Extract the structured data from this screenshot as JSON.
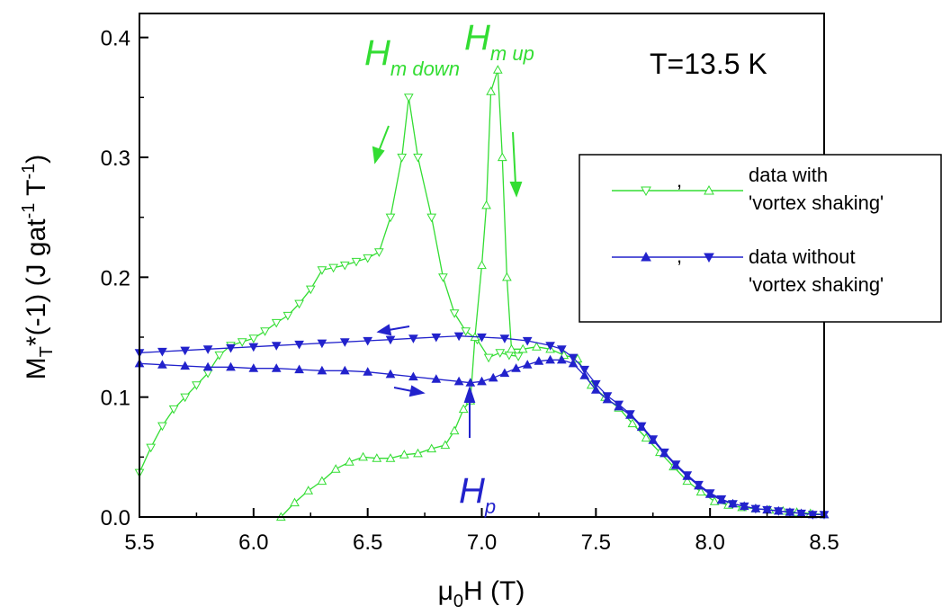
{
  "chart_data": {
    "type": "scatter",
    "xlim": [
      5.5,
      8.5
    ],
    "ylim": [
      0.0,
      0.42
    ],
    "x_ticks": [
      "5.5",
      "6.0",
      "6.5",
      "7.0",
      "7.5",
      "8.0",
      "8.5"
    ],
    "y_ticks": [
      "0.0",
      "0.1",
      "0.2",
      "0.3",
      "0.4"
    ],
    "x_tick_values": [
      5.5,
      6.0,
      6.5,
      7.0,
      7.5,
      8.0,
      8.5
    ],
    "y_tick_values": [
      0.0,
      0.1,
      0.2,
      0.3,
      0.4
    ],
    "xlabel": {
      "mu": "μ",
      "sub": "0",
      "rest": "H (T)"
    },
    "ylabel": {
      "m": "M",
      "sub": "T",
      "mid": "*(-1)  (J gat",
      "sup1": "-1",
      "t": " T",
      "sup2": "-1",
      "close": ")"
    },
    "grid": false,
    "legend_position": "right",
    "legend": [
      {
        "line1": "data with",
        "line2": "'vortex shaking'",
        "sep": ",",
        "color": "#33dd33"
      },
      {
        "line1": "data without",
        "line2": "'vortex shaking'",
        "sep": ",",
        "color": "#2222cc"
      }
    ],
    "annotations": {
      "temperature": "T=13.5 K",
      "h_m_down": {
        "main": "H",
        "sub": "m down"
      },
      "h_m_up": {
        "main": "H",
        "sub": "m up"
      },
      "h_p": {
        "main": "H",
        "sub": "p"
      }
    },
    "series": [
      {
        "color": "#33dd33",
        "marker": "triangle-down-open",
        "points": [
          [
            5.5,
            0.037
          ],
          [
            5.55,
            0.058
          ],
          [
            5.6,
            0.076
          ],
          [
            5.65,
            0.09
          ],
          [
            5.7,
            0.1
          ],
          [
            5.75,
            0.11
          ],
          [
            5.8,
            0.12
          ],
          [
            5.85,
            0.135
          ],
          [
            5.9,
            0.143
          ],
          [
            5.95,
            0.146
          ],
          [
            6.0,
            0.149
          ],
          [
            6.05,
            0.155
          ],
          [
            6.1,
            0.162
          ],
          [
            6.15,
            0.168
          ],
          [
            6.2,
            0.178
          ],
          [
            6.25,
            0.19
          ],
          [
            6.3,
            0.206
          ],
          [
            6.35,
            0.208
          ],
          [
            6.4,
            0.21
          ],
          [
            6.45,
            0.213
          ],
          [
            6.5,
            0.216
          ],
          [
            6.55,
            0.221
          ],
          [
            6.6,
            0.25
          ],
          [
            6.65,
            0.3
          ],
          [
            6.68,
            0.35
          ],
          [
            6.72,
            0.3
          ],
          [
            6.78,
            0.25
          ],
          [
            6.83,
            0.2
          ],
          [
            6.88,
            0.17
          ],
          [
            6.93,
            0.155
          ],
          [
            6.98,
            0.148
          ],
          [
            7.03,
            0.133
          ],
          [
            7.08,
            0.137
          ],
          [
            7.12,
            0.135
          ],
          [
            7.16,
            0.134
          ]
        ]
      },
      {
        "color": "#33dd33",
        "marker": "triangle-up-open",
        "points": [
          [
            6.12,
            0.0
          ],
          [
            6.18,
            0.012
          ],
          [
            6.24,
            0.022
          ],
          [
            6.3,
            0.03
          ],
          [
            6.36,
            0.04
          ],
          [
            6.42,
            0.046
          ],
          [
            6.48,
            0.05
          ],
          [
            6.54,
            0.049
          ],
          [
            6.6,
            0.049
          ],
          [
            6.66,
            0.052
          ],
          [
            6.72,
            0.053
          ],
          [
            6.78,
            0.057
          ],
          [
            6.84,
            0.06
          ],
          [
            6.88,
            0.072
          ],
          [
            6.92,
            0.09
          ],
          [
            6.95,
            0.097
          ],
          [
            6.97,
            0.15
          ],
          [
            7.0,
            0.21
          ],
          [
            7.02,
            0.26
          ],
          [
            7.04,
            0.355
          ],
          [
            7.07,
            0.373
          ],
          [
            7.09,
            0.3
          ],
          [
            7.11,
            0.2
          ],
          [
            7.13,
            0.14
          ],
          [
            7.18,
            0.14
          ],
          [
            7.24,
            0.142
          ],
          [
            7.3,
            0.14
          ],
          [
            7.36,
            0.135
          ],
          [
            7.42,
            0.132
          ],
          [
            7.48,
            0.11
          ],
          [
            7.54,
            0.1
          ],
          [
            7.6,
            0.091
          ],
          [
            7.66,
            0.078
          ],
          [
            7.72,
            0.066
          ],
          [
            7.78,
            0.054
          ],
          [
            7.84,
            0.042
          ],
          [
            7.9,
            0.03
          ],
          [
            7.96,
            0.021
          ],
          [
            8.02,
            0.013
          ],
          [
            8.08,
            0.01
          ],
          [
            8.14,
            0.008
          ],
          [
            8.2,
            0.007
          ],
          [
            8.26,
            0.006
          ],
          [
            8.32,
            0.005
          ],
          [
            8.38,
            0.004
          ],
          [
            8.44,
            0.003
          ],
          [
            8.5,
            0.002
          ]
        ]
      },
      {
        "color": "#2222cc",
        "marker": "triangle-up-filled",
        "points": [
          [
            5.5,
            0.128
          ],
          [
            5.6,
            0.127
          ],
          [
            5.7,
            0.126
          ],
          [
            5.8,
            0.125
          ],
          [
            5.9,
            0.125
          ],
          [
            6.0,
            0.124
          ],
          [
            6.1,
            0.124
          ],
          [
            6.2,
            0.123
          ],
          [
            6.3,
            0.122
          ],
          [
            6.4,
            0.122
          ],
          [
            6.5,
            0.121
          ],
          [
            6.6,
            0.119
          ],
          [
            6.7,
            0.117
          ],
          [
            6.8,
            0.115
          ],
          [
            6.9,
            0.113
          ],
          [
            6.95,
            0.112
          ],
          [
            7.0,
            0.113
          ],
          [
            7.05,
            0.116
          ],
          [
            7.1,
            0.12
          ],
          [
            7.15,
            0.124
          ],
          [
            7.2,
            0.127
          ],
          [
            7.25,
            0.13
          ],
          [
            7.3,
            0.131
          ],
          [
            7.35,
            0.131
          ],
          [
            7.4,
            0.128
          ],
          [
            7.45,
            0.118
          ],
          [
            7.5,
            0.106
          ],
          [
            7.55,
            0.098
          ],
          [
            7.6,
            0.092
          ],
          [
            7.65,
            0.085
          ],
          [
            7.7,
            0.075
          ],
          [
            7.75,
            0.064
          ],
          [
            7.8,
            0.053
          ],
          [
            7.85,
            0.043
          ],
          [
            7.9,
            0.034
          ],
          [
            7.95,
            0.026
          ],
          [
            8.0,
            0.019
          ],
          [
            8.05,
            0.014
          ],
          [
            8.1,
            0.011
          ],
          [
            8.15,
            0.009
          ],
          [
            8.2,
            0.007
          ],
          [
            8.25,
            0.006
          ],
          [
            8.3,
            0.005
          ],
          [
            8.35,
            0.004
          ],
          [
            8.4,
            0.003
          ],
          [
            8.45,
            0.002
          ],
          [
            8.5,
            0.002
          ]
        ]
      },
      {
        "color": "#2222cc",
        "marker": "triangle-down-filled",
        "points": [
          [
            5.5,
            0.137
          ],
          [
            5.6,
            0.138
          ],
          [
            5.7,
            0.139
          ],
          [
            5.8,
            0.14
          ],
          [
            5.9,
            0.141
          ],
          [
            6.0,
            0.142
          ],
          [
            6.1,
            0.143
          ],
          [
            6.2,
            0.144
          ],
          [
            6.3,
            0.145
          ],
          [
            6.4,
            0.146
          ],
          [
            6.5,
            0.147
          ],
          [
            6.6,
            0.148
          ],
          [
            6.7,
            0.149
          ],
          [
            6.8,
            0.15
          ],
          [
            6.9,
            0.151
          ],
          [
            7.0,
            0.15
          ],
          [
            7.1,
            0.149
          ],
          [
            7.2,
            0.147
          ],
          [
            7.3,
            0.143
          ],
          [
            7.35,
            0.14
          ],
          [
            7.4,
            0.133
          ],
          [
            7.45,
            0.123
          ],
          [
            7.5,
            0.111
          ],
          [
            7.55,
            0.101
          ],
          [
            7.6,
            0.094
          ],
          [
            7.65,
            0.086
          ],
          [
            7.7,
            0.076
          ],
          [
            7.75,
            0.065
          ],
          [
            7.8,
            0.054
          ],
          [
            7.85,
            0.044
          ],
          [
            7.9,
            0.035
          ],
          [
            7.95,
            0.027
          ],
          [
            8.0,
            0.02
          ],
          [
            8.05,
            0.015
          ],
          [
            8.1,
            0.011
          ],
          [
            8.15,
            0.009
          ],
          [
            8.2,
            0.007
          ],
          [
            8.25,
            0.006
          ],
          [
            8.3,
            0.005
          ],
          [
            8.35,
            0.004
          ],
          [
            8.4,
            0.003
          ],
          [
            8.45,
            0.002
          ],
          [
            8.5,
            0.002
          ]
        ]
      }
    ]
  }
}
